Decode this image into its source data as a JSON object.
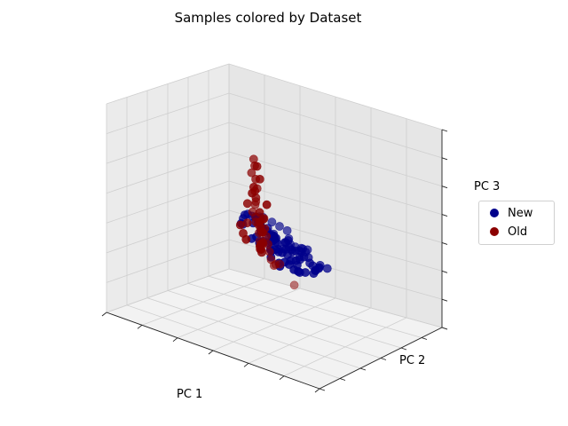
{
  "chart_data": {
    "type": "scatter",
    "title": "Samples colored by Dataset",
    "xlabel": "PC 1",
    "ylabel": "PC 2",
    "zlabel": "PC 3",
    "projection": "3d",
    "tick_labels_visible": false,
    "grid": true,
    "legend_placement": "center-right outside",
    "series": [
      {
        "name": "New",
        "color": "#00008b",
        "points": [
          [
            0.32,
            0.78,
            0.08
          ],
          [
            0.35,
            0.74,
            0.16
          ],
          [
            0.38,
            0.78,
            0.05
          ],
          [
            0.4,
            0.71,
            0.2
          ],
          [
            0.28,
            0.83,
            0.12
          ],
          [
            0.44,
            0.73,
            0.18
          ],
          [
            0.33,
            0.68,
            0.26
          ],
          [
            0.46,
            0.66,
            0.22
          ],
          [
            0.52,
            0.69,
            0.12
          ],
          [
            0.3,
            0.72,
            0.34
          ],
          [
            0.36,
            0.82,
            0.0
          ],
          [
            0.41,
            0.62,
            0.3
          ],
          [
            0.5,
            0.6,
            0.28
          ],
          [
            0.55,
            0.63,
            0.24
          ],
          [
            0.58,
            0.57,
            0.32
          ],
          [
            0.63,
            0.62,
            0.18
          ],
          [
            0.67,
            0.55,
            0.26
          ],
          [
            0.61,
            0.5,
            0.36
          ],
          [
            0.7,
            0.47,
            0.38
          ],
          [
            0.72,
            0.52,
            0.3
          ],
          [
            0.76,
            0.46,
            0.36
          ],
          [
            0.74,
            0.4,
            0.44
          ],
          [
            0.79,
            0.37,
            0.46
          ],
          [
            0.82,
            0.42,
            0.4
          ],
          [
            0.85,
            0.35,
            0.48
          ],
          [
            0.87,
            0.3,
            0.52
          ],
          [
            0.91,
            0.34,
            0.46
          ],
          [
            0.93,
            0.28,
            0.54
          ],
          [
            0.88,
            0.24,
            0.58
          ],
          [
            0.95,
            0.22,
            0.6
          ],
          [
            0.8,
            0.3,
            0.4
          ],
          [
            0.77,
            0.33,
            0.5
          ],
          [
            0.84,
            0.26,
            0.44
          ],
          [
            0.9,
            0.4,
            0.36
          ],
          [
            0.83,
            0.47,
            0.33
          ],
          [
            0.68,
            0.45,
            0.48
          ],
          [
            0.64,
            0.47,
            0.44
          ],
          [
            0.6,
            0.54,
            0.4
          ],
          [
            0.57,
            0.45,
            0.46
          ],
          [
            0.55,
            0.52,
            0.38
          ],
          [
            0.48,
            0.55,
            0.42
          ],
          [
            0.47,
            0.62,
            0.36
          ],
          [
            0.43,
            0.66,
            0.32
          ],
          [
            0.39,
            0.7,
            0.28
          ],
          [
            0.35,
            0.64,
            0.4
          ],
          [
            0.31,
            0.6,
            0.44
          ],
          [
            0.37,
            0.57,
            0.48
          ],
          [
            0.42,
            0.52,
            0.5
          ],
          [
            0.45,
            0.48,
            0.46
          ],
          [
            0.52,
            0.45,
            0.5
          ],
          [
            0.56,
            0.4,
            0.56
          ],
          [
            0.59,
            0.37,
            0.52
          ],
          [
            0.62,
            0.35,
            0.48
          ],
          [
            0.66,
            0.32,
            0.56
          ],
          [
            0.69,
            0.3,
            0.52
          ],
          [
            0.71,
            0.26,
            0.58
          ],
          [
            0.73,
            0.22,
            0.62
          ],
          [
            0.75,
            0.19,
            0.66
          ],
          [
            0.97,
            0.38,
            0.4
          ],
          [
            0.99,
            0.43,
            0.36
          ],
          [
            0.89,
            0.48,
            0.3
          ],
          [
            0.86,
            0.53,
            0.28
          ],
          [
            0.81,
            0.56,
            0.22
          ],
          [
            0.78,
            0.6,
            0.2
          ],
          [
            0.74,
            0.64,
            0.14
          ],
          [
            0.65,
            0.68,
            0.1
          ],
          [
            0.58,
            0.72,
            0.06
          ],
          [
            0.54,
            0.76,
            0.04
          ],
          [
            0.48,
            0.8,
            0.02
          ],
          [
            0.43,
            0.77,
            0.08
          ],
          [
            0.28,
            0.68,
            0.28
          ],
          [
            0.26,
            0.74,
            0.2
          ],
          [
            0.23,
            0.7,
            0.24
          ],
          [
            0.21,
            0.63,
            0.38
          ],
          [
            0.24,
            0.57,
            0.42
          ],
          [
            0.29,
            0.52,
            0.5
          ],
          [
            0.33,
            0.48,
            0.56
          ],
          [
            0.38,
            0.44,
            0.6
          ],
          [
            0.44,
            0.4,
            0.62
          ],
          [
            0.49,
            0.37,
            0.64
          ],
          [
            0.53,
            0.31,
            0.68
          ],
          [
            0.57,
            0.27,
            0.7
          ],
          [
            0.61,
            0.24,
            0.72
          ],
          [
            0.64,
            0.2,
            0.74
          ],
          [
            0.67,
            0.16,
            0.78
          ],
          [
            0.7,
            0.12,
            0.8
          ],
          [
            0.72,
            0.08,
            0.84
          ],
          [
            0.76,
            0.06,
            0.86
          ],
          [
            0.8,
            0.1,
            0.82
          ],
          [
            0.83,
            0.14,
            0.78
          ],
          [
            0.86,
            0.18,
            0.74
          ],
          [
            0.9,
            0.14,
            0.7
          ],
          [
            0.94,
            0.1,
            0.68
          ],
          [
            0.98,
            0.16,
            0.64
          ],
          [
            1.0,
            0.2,
            0.62
          ]
        ]
      },
      {
        "name": "Old",
        "color": "#8b0000",
        "points": [
          [
            0.08,
            0.92,
            0.52
          ],
          [
            0.12,
            0.88,
            0.6
          ],
          [
            0.1,
            0.84,
            0.46
          ],
          [
            0.15,
            0.9,
            0.38
          ],
          [
            0.18,
            0.86,
            0.7
          ],
          [
            0.2,
            0.8,
            0.84
          ],
          [
            0.22,
            0.76,
            0.58
          ],
          [
            0.14,
            0.78,
            0.32
          ],
          [
            0.06,
            0.82,
            0.26
          ],
          [
            0.04,
            0.88,
            0.16
          ],
          [
            0.02,
            0.94,
            0.08
          ],
          [
            0.17,
            0.95,
            0.44
          ],
          [
            0.24,
            0.72,
            0.66
          ],
          [
            0.26,
            0.7,
            0.78
          ],
          [
            0.28,
            0.66,
            0.92
          ],
          [
            0.3,
            0.62,
            1.0
          ],
          [
            0.27,
            0.64,
            0.86
          ],
          [
            0.34,
            0.6,
            0.76
          ],
          [
            0.36,
            0.55,
            0.64
          ],
          [
            0.32,
            0.58,
            0.55
          ],
          [
            0.4,
            0.5,
            0.7
          ],
          [
            0.38,
            0.53,
            0.5
          ],
          [
            0.42,
            0.47,
            0.58
          ],
          [
            0.46,
            0.44,
            0.54
          ],
          [
            0.44,
            0.5,
            0.44
          ],
          [
            0.48,
            0.42,
            0.48
          ],
          [
            0.5,
            0.4,
            0.42
          ],
          [
            0.52,
            0.38,
            0.38
          ],
          [
            0.46,
            0.46,
            0.34
          ],
          [
            0.4,
            0.58,
            0.3
          ],
          [
            0.34,
            0.66,
            0.26
          ],
          [
            0.3,
            0.7,
            0.22
          ],
          [
            0.25,
            0.76,
            0.16
          ],
          [
            0.21,
            0.82,
            0.1
          ],
          [
            0.18,
            0.88,
            0.04
          ],
          [
            0.12,
            0.96,
            0.02
          ],
          [
            0.16,
            0.92,
            0.2
          ],
          [
            0.19,
            0.85,
            0.28
          ],
          [
            0.23,
            0.79,
            0.36
          ],
          [
            0.29,
            0.74,
            0.42
          ],
          [
            0.33,
            0.69,
            0.46
          ],
          [
            0.37,
            0.64,
            0.4
          ],
          [
            0.41,
            0.6,
            0.36
          ],
          [
            0.45,
            0.56,
            0.32
          ],
          [
            0.49,
            0.52,
            0.28
          ],
          [
            0.53,
            0.48,
            0.24
          ],
          [
            0.58,
            0.44,
            0.22
          ],
          [
            0.62,
            0.4,
            0.26
          ],
          [
            0.68,
            0.36,
            0.3
          ],
          [
            0.9,
            0.2,
            0.26
          ]
        ]
      }
    ]
  }
}
